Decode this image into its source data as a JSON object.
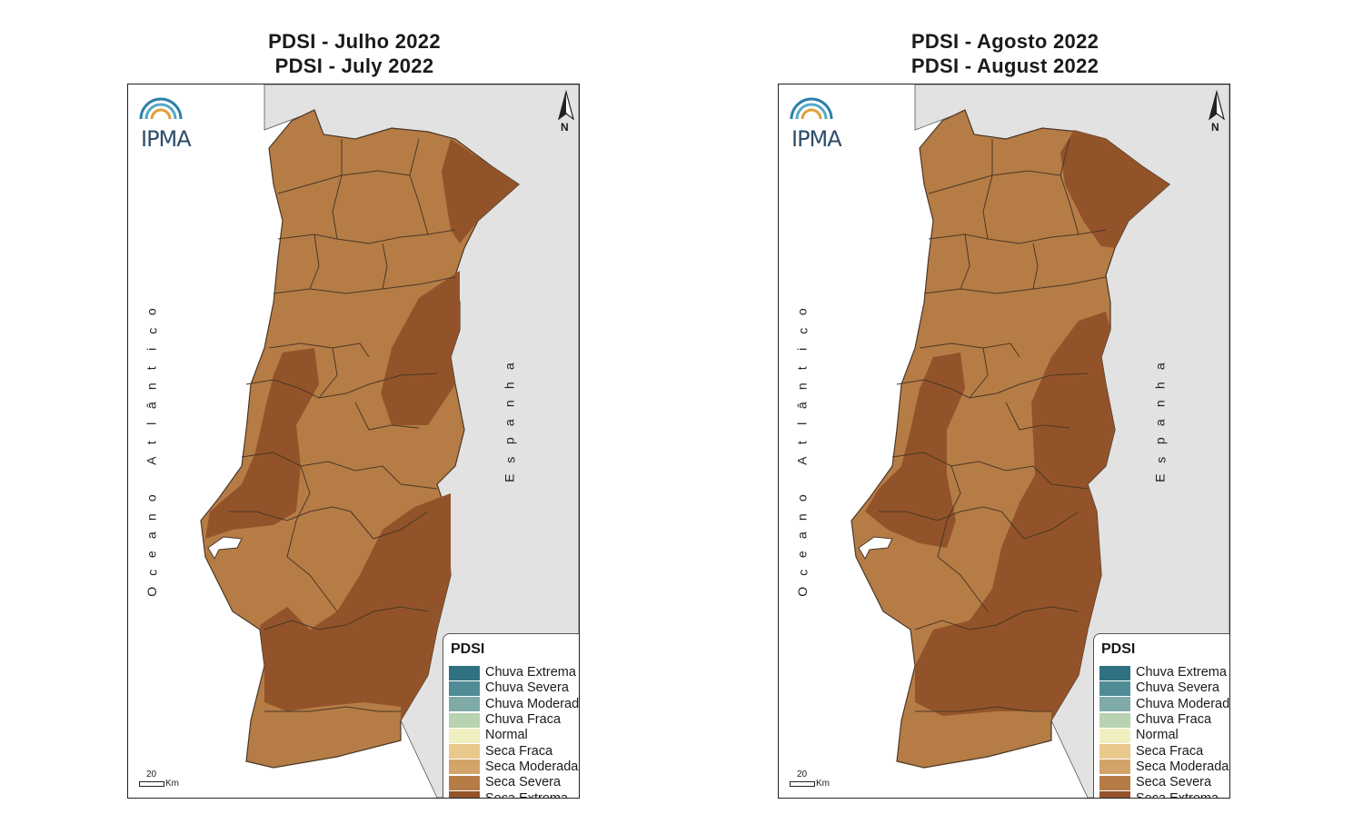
{
  "maps": [
    {
      "title_line1": "PDSI - Julho 2022",
      "title_line2": "PDSI - July 2022",
      "variant": "july"
    },
    {
      "title_line1": "PDSI - Agosto 2022",
      "title_line2": "PDSI - August 2022",
      "variant": "august"
    }
  ],
  "logo_text": "IPMA",
  "north_label": "N",
  "ocean_label": "Oceano Atlântico",
  "spain_label": "Espanha",
  "scale": {
    "value": "20",
    "unit": "Km"
  },
  "legend": {
    "title": "PDSI",
    "items": [
      {
        "label": "Chuva Extrema",
        "color": "#2f7180"
      },
      {
        "label": "Chuva Severa",
        "color": "#4f8c96"
      },
      {
        "label": "Chuva Moderada",
        "color": "#7eaaa7"
      },
      {
        "label": "Chuva Fraca",
        "color": "#b9d2b1"
      },
      {
        "label": "Normal",
        "color": "#f0efc0"
      },
      {
        "label": "Seca Fraca",
        "color": "#e9c98b"
      },
      {
        "label": "Seca Moderada",
        "color": "#d3a46a"
      },
      {
        "label": "Seca Severa",
        "color": "#b67c46"
      },
      {
        "label": "Seca Extrema",
        "color": "#93532a"
      }
    ]
  },
  "colors": {
    "land": "#b67c46",
    "extreme": "#93532a",
    "spain": "#e2e2e2",
    "sea": "#ffffff",
    "border": "#4a3826"
  }
}
